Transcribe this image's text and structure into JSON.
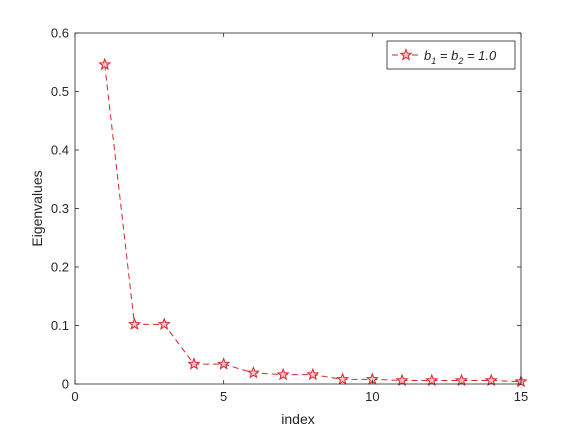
{
  "chart_data": {
    "type": "line",
    "title": "",
    "xlabel": "index",
    "ylabel": "Eigenvalues",
    "xlim": [
      0,
      15
    ],
    "ylim": [
      0,
      0.6
    ],
    "xticks": [
      0,
      5,
      10,
      15
    ],
    "xtick_labels": [
      "0",
      "5",
      "10",
      "15"
    ],
    "yticks": [
      0,
      0.1,
      0.2,
      0.3,
      0.4,
      0.5,
      0.6
    ],
    "ytick_labels": [
      "0",
      "0.1",
      "0.2",
      "0.3",
      "0.4",
      "0.5",
      "0.6"
    ],
    "grid": false,
    "legend_position": "top-right",
    "series": [
      {
        "name": "b1 = b2 = 1.0",
        "legend_parts": {
          "b": "b",
          "sub1": "1",
          "eq": " = ",
          "sub2": "2",
          "val": " = 1.0"
        },
        "color": "#d62728",
        "marker_edge_color": "#d62728",
        "marker_face_color": "#ffc0cb",
        "line_style": "dashed",
        "marker": "star",
        "x": [
          1,
          2,
          3,
          4,
          5,
          6,
          7,
          8,
          9,
          10,
          11,
          12,
          13,
          14,
          15
        ],
        "y": [
          0.546,
          0.102,
          0.102,
          0.034,
          0.034,
          0.019,
          0.016,
          0.016,
          0.008,
          0.008,
          0.006,
          0.006,
          0.006,
          0.006,
          0.004
        ]
      }
    ]
  }
}
